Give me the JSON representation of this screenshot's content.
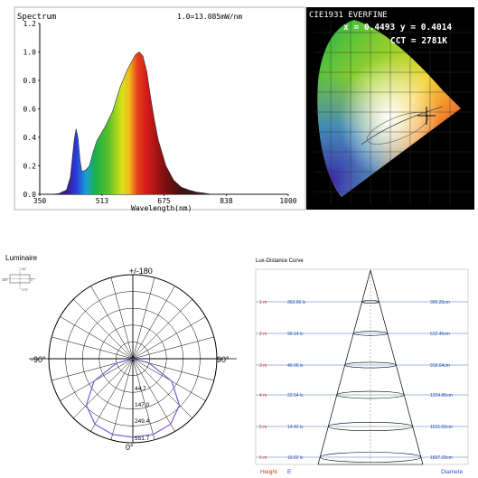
{
  "spectrum": {
    "title": "Spectrum",
    "annotation": "1.0=13.085mW/nm",
    "xlabel": "Wavelength(nm)",
    "xticks": [
      "350",
      "513",
      "675",
      "838",
      "1000"
    ],
    "yticks": [
      "0.0",
      "0.2",
      "0.4",
      "0.6",
      "0.8",
      "1.0",
      "1.2"
    ]
  },
  "cie": {
    "title": "CIE1931 EVERFINE",
    "xy_label": "x = 0.4493 y = 0.4014",
    "cct_label": "CCT = 2781K"
  },
  "polar": {
    "title": "Luminaire",
    "label_top": "+/-180",
    "label_left": "-90°",
    "label_right": "90°",
    "label_bottom": "0°",
    "radial_labels": [
      "44.7",
      "147.0",
      "249.4",
      "551.7"
    ]
  },
  "lux": {
    "title": "Lux-Distance Curve",
    "footer_height": "Height",
    "footer_e": "E",
    "footer_diam": "Diamete",
    "rows": [
      {
        "height": "1 m",
        "lux": "363.66 lx",
        "diameter": "306.25cm"
      },
      {
        "height": "2 m",
        "lux": "90.14 lx",
        "diameter": "612.45cm"
      },
      {
        "height": "3 m",
        "lux": "40.06 lx",
        "diameter": "918.64cm"
      },
      {
        "height": "4 m",
        "lux": "22.54 lx",
        "diameter": "1224.86cm"
      },
      {
        "height": "5 m",
        "lux": "14.42 lx",
        "diameter": "1531.02cm"
      },
      {
        "height": "6 m",
        "lux": "10.02 lx",
        "diameter": "1837.29cm"
      }
    ]
  },
  "chart_data": [
    {
      "type": "area",
      "title": "Spectrum",
      "xlabel": "Wavelength(nm)",
      "ylabel": "",
      "xlim": [
        350,
        1000
      ],
      "ylim": [
        0,
        1.2
      ],
      "x": [
        350,
        380,
        400,
        420,
        430,
        440,
        445,
        450,
        455,
        460,
        470,
        480,
        490,
        500,
        520,
        540,
        560,
        580,
        600,
        610,
        620,
        630,
        640,
        650,
        660,
        680,
        700,
        720,
        740,
        760,
        780,
        800,
        1000
      ],
      "y": [
        0.0,
        0.0,
        0.005,
        0.03,
        0.12,
        0.38,
        0.46,
        0.4,
        0.25,
        0.16,
        0.17,
        0.2,
        0.3,
        0.38,
        0.47,
        0.58,
        0.75,
        0.88,
        0.98,
        1.0,
        0.97,
        0.86,
        0.68,
        0.52,
        0.38,
        0.2,
        0.1,
        0.05,
        0.03,
        0.015,
        0.008,
        0.0,
        0.0
      ]
    },
    {
      "type": "scatter",
      "title": "CIE1931 EVERFINE",
      "x": [
        0.4493
      ],
      "y": [
        0.4014
      ]
    },
    {
      "type": "line",
      "title": "Luminaire",
      "theta_deg": [
        -90,
        -75,
        -60,
        -45,
        -30,
        -15,
        0,
        15,
        30,
        45,
        60,
        75,
        90
      ],
      "r": [
        0,
        120,
        320,
        470,
        540,
        560,
        560,
        560,
        540,
        470,
        320,
        120,
        0
      ],
      "rlim": [
        0,
        600
      ]
    },
    {
      "type": "table",
      "title": "Lux-Distance Curve",
      "columns": [
        "Height",
        "E",
        "Diamete"
      ],
      "rows": [
        [
          "1 m",
          "363.66 lx",
          "306.25cm"
        ],
        [
          "2 m",
          "90.14 lx",
          "612.45cm"
        ],
        [
          "3 m",
          "40.06 lx",
          "918.64cm"
        ],
        [
          "4 m",
          "22.54 lx",
          "1224.86cm"
        ],
        [
          "5 m",
          "14.42 lx",
          "1531.02cm"
        ],
        [
          "6 m",
          "10.02 lx",
          "1837.29cm"
        ]
      ]
    }
  ]
}
